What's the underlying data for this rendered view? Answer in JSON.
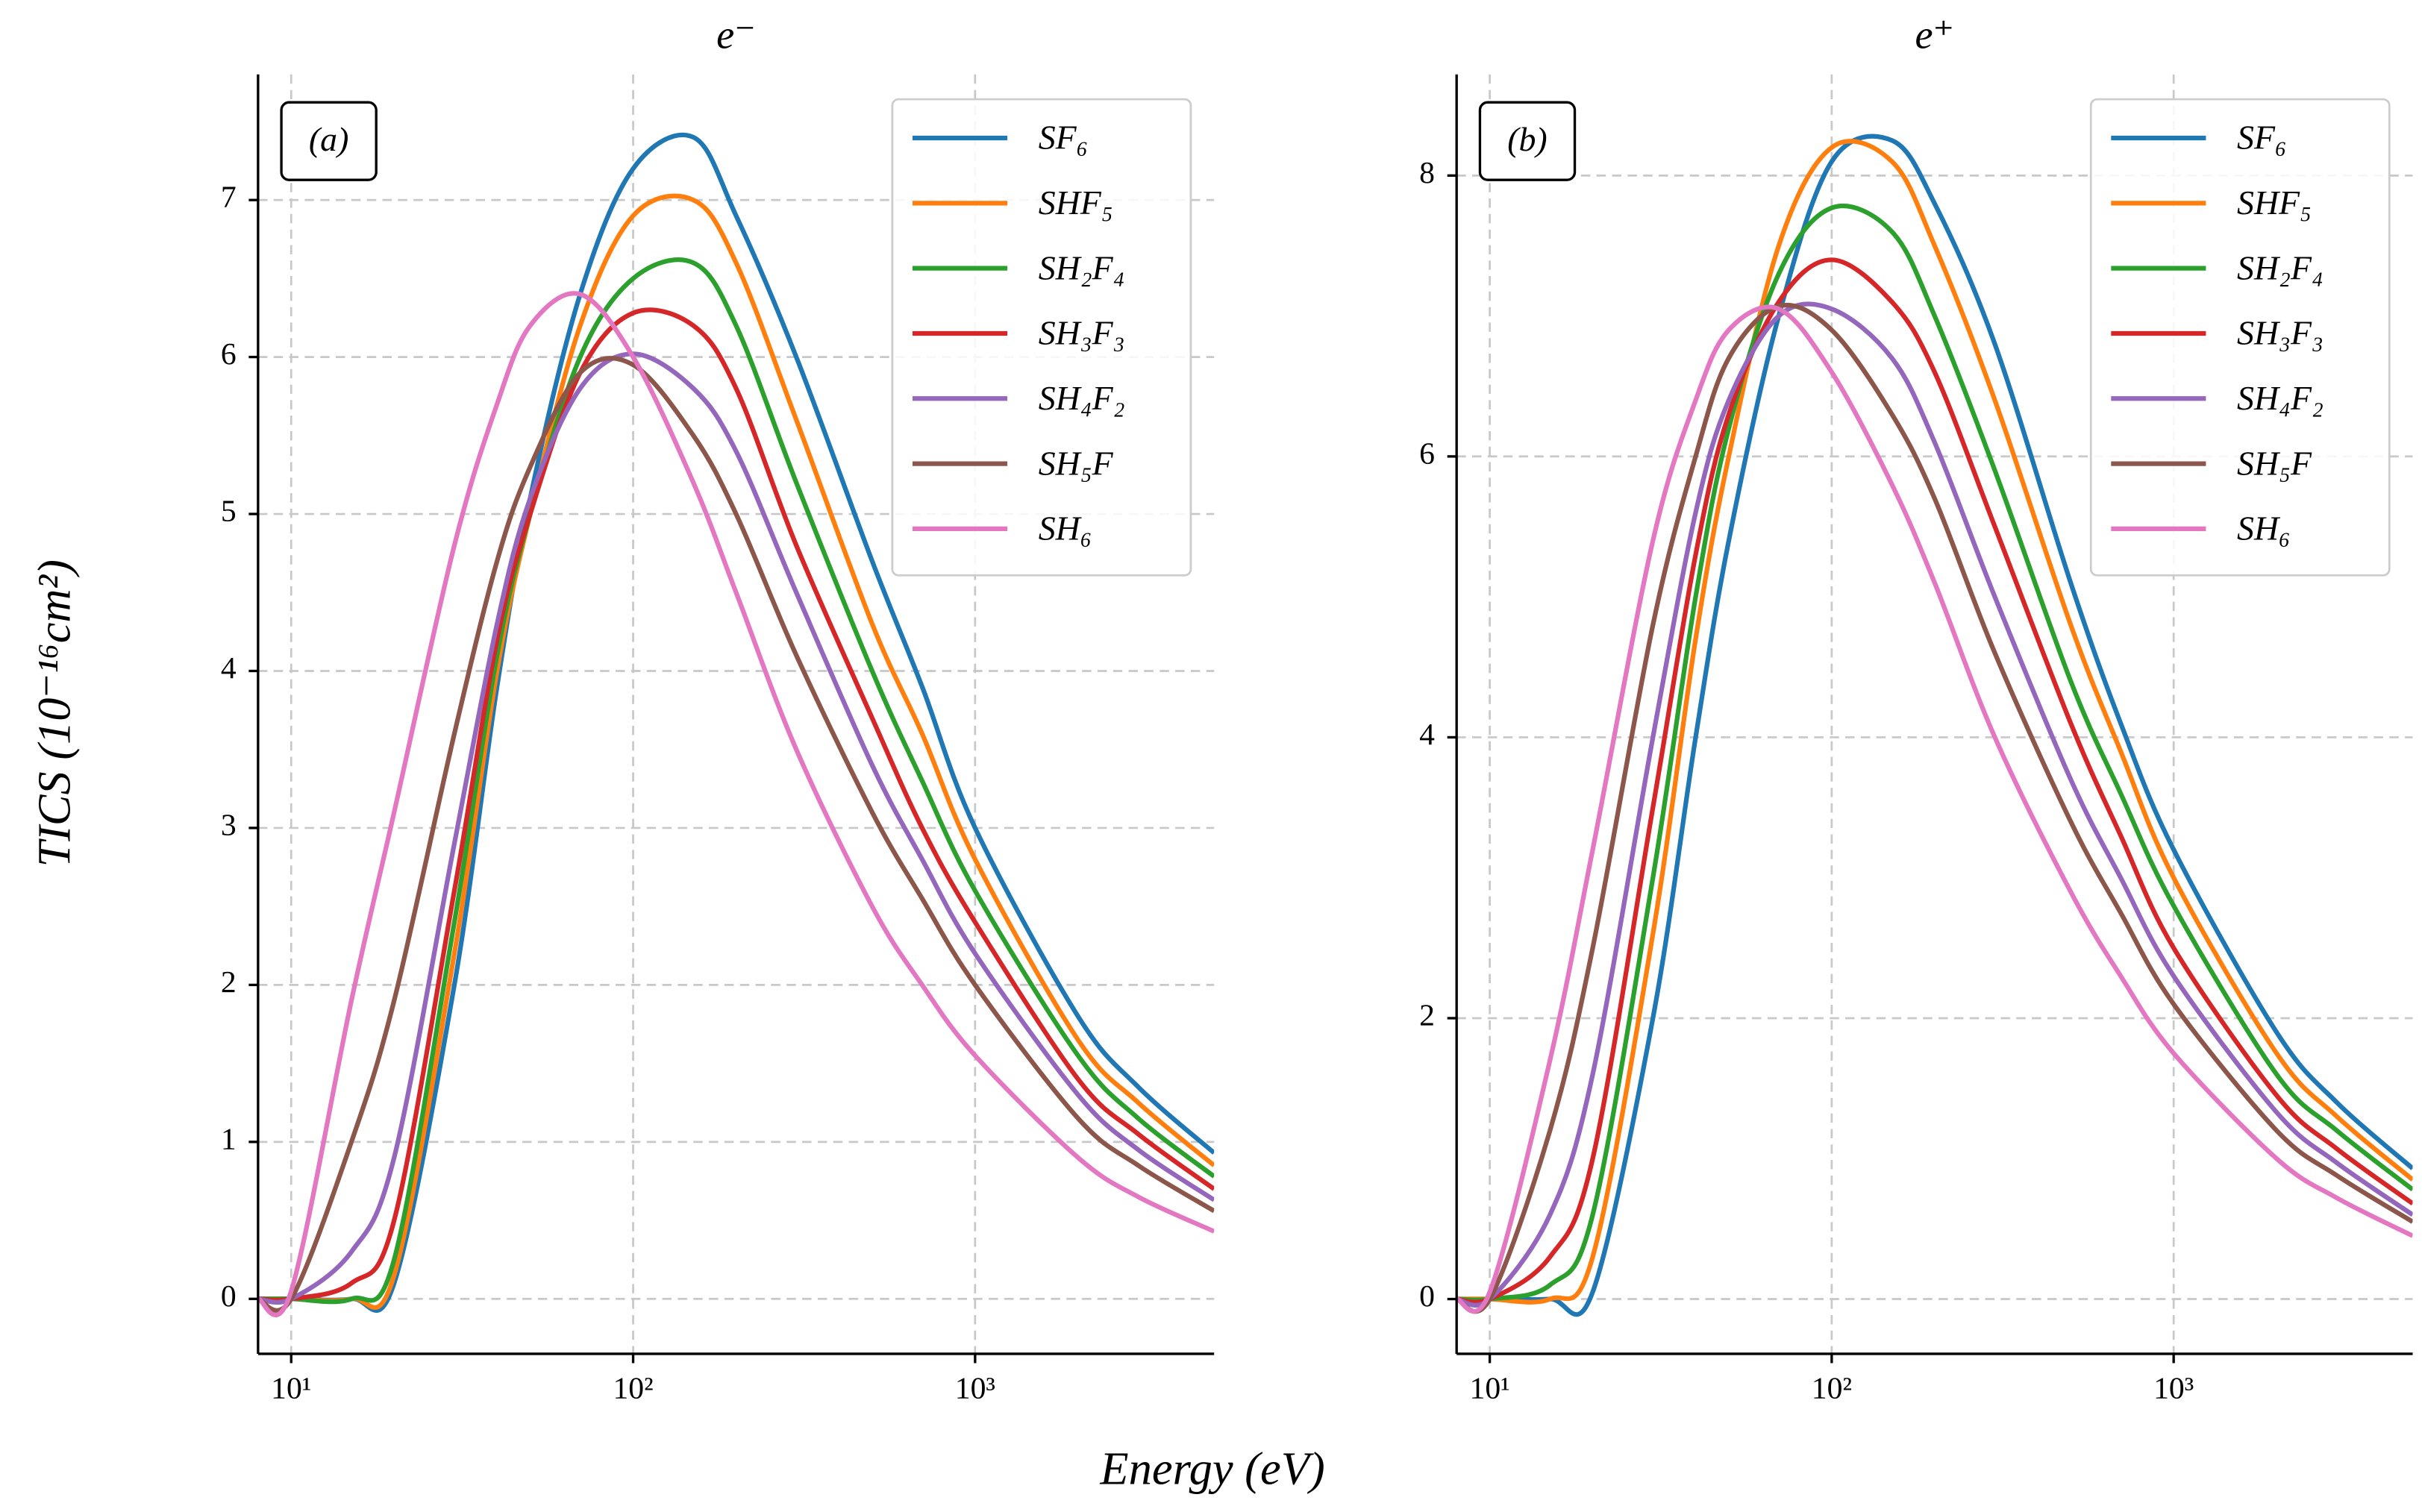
{
  "xlabel": "Energy (eV)",
  "ylabel": "TICS (10⁻¹⁶cm²)",
  "chart_data": [
    {
      "type": "line",
      "title": "e⁻",
      "panel_label": "(a)",
      "xscale": "log",
      "grid": true,
      "legend": "upper right",
      "xlim": [
        8,
        5000
      ],
      "ylim": [
        -0.35,
        7.8
      ],
      "xticks": [
        {
          "value": 10,
          "label": "10¹"
        },
        {
          "value": 100,
          "label": "10²"
        },
        {
          "value": 1000,
          "label": "10³"
        }
      ],
      "yticks": [
        0,
        1,
        2,
        3,
        4,
        5,
        6,
        7
      ],
      "x": [
        8,
        10,
        15,
        20,
        30,
        40,
        50,
        70,
        100,
        150,
        200,
        300,
        500,
        700,
        1000,
        2000,
        3000,
        5000
      ],
      "series": [
        {
          "name": "SF₆",
          "color": "#1f77b4",
          "values": [
            0,
            0,
            0,
            0.1,
            2.0,
            3.9,
            5.1,
            6.4,
            7.2,
            7.4,
            6.9,
            6.0,
            4.7,
            3.9,
            3.0,
            1.8,
            1.35,
            0.93
          ]
        },
        {
          "name": "SHF₅",
          "color": "#ff7f0e",
          "values": [
            0,
            0,
            0,
            0.15,
            2.2,
            4.0,
            5.0,
            6.2,
            6.9,
            7.0,
            6.6,
            5.6,
            4.3,
            3.6,
            2.8,
            1.65,
            1.25,
            0.85
          ]
        },
        {
          "name": "SH₂F₄",
          "color": "#2ca02c",
          "values": [
            0,
            0,
            0,
            0.25,
            2.4,
            4.1,
            5.0,
            6.0,
            6.5,
            6.6,
            6.2,
            5.2,
            4.0,
            3.3,
            2.6,
            1.55,
            1.15,
            0.78
          ]
        },
        {
          "name": "SH₃F₃",
          "color": "#d62728",
          "values": [
            0,
            0,
            0.1,
            0.5,
            2.6,
            4.2,
            5.0,
            5.9,
            6.28,
            6.2,
            5.8,
            4.8,
            3.7,
            3.0,
            2.4,
            1.4,
            1.05,
            0.7
          ]
        },
        {
          "name": "SH₄F₂",
          "color": "#9467bd",
          "values": [
            0,
            0,
            0.3,
            0.9,
            2.9,
            4.3,
            5.1,
            5.8,
            6.02,
            5.8,
            5.4,
            4.5,
            3.4,
            2.8,
            2.2,
            1.3,
            0.95,
            0.63
          ]
        },
        {
          "name": "SH₅F",
          "color": "#8c564b",
          "values": [
            0,
            0,
            1.0,
            1.9,
            3.6,
            4.7,
            5.3,
            5.9,
            5.95,
            5.5,
            5.0,
            4.1,
            3.1,
            2.55,
            2.0,
            1.15,
            0.85,
            0.56
          ]
        },
        {
          "name": "SH₆",
          "color": "#e377c2",
          "values": [
            0,
            0.05,
            1.9,
            3.1,
            4.8,
            5.7,
            6.2,
            6.4,
            6.0,
            5.2,
            4.5,
            3.5,
            2.5,
            2.0,
            1.55,
            0.9,
            0.65,
            0.43
          ]
        }
      ]
    },
    {
      "type": "line",
      "title": "e⁺",
      "panel_label": "(b)",
      "xscale": "log",
      "grid": true,
      "legend": "upper right",
      "xlim": [
        8,
        5000
      ],
      "ylim": [
        -0.39,
        8.72
      ],
      "xticks": [
        {
          "value": 10,
          "label": "10¹"
        },
        {
          "value": 100,
          "label": "10²"
        },
        {
          "value": 1000,
          "label": "10³"
        }
      ],
      "yticks": [
        0,
        2,
        4,
        6,
        8
      ],
      "x": [
        8,
        10,
        15,
        20,
        30,
        40,
        50,
        70,
        100,
        150,
        200,
        300,
        500,
        700,
        1000,
        2000,
        3000,
        5000
      ],
      "series": [
        {
          "name": "SF₆",
          "color": "#1f77b4",
          "values": [
            0,
            0,
            0,
            0.05,
            2.0,
            4.0,
            5.4,
            7.0,
            8.1,
            8.25,
            7.8,
            6.8,
            5.1,
            4.1,
            3.2,
            1.9,
            1.4,
            0.93
          ]
        },
        {
          "name": "SHF₅",
          "color": "#ff7f0e",
          "values": [
            0,
            0,
            0,
            0.3,
            2.6,
            4.7,
            6.0,
            7.5,
            8.2,
            8.1,
            7.5,
            6.4,
            4.8,
            3.9,
            3.0,
            1.75,
            1.3,
            0.85
          ]
        },
        {
          "name": "SH₂F₄",
          "color": "#2ca02c",
          "values": [
            0,
            0,
            0.1,
            0.6,
            3.0,
            5.0,
            6.2,
            7.3,
            7.77,
            7.6,
            7.0,
            5.9,
            4.4,
            3.6,
            2.8,
            1.6,
            1.2,
            0.78
          ]
        },
        {
          "name": "SH₃F₃",
          "color": "#d62728",
          "values": [
            0,
            0,
            0.3,
            1.0,
            3.5,
            5.3,
            6.3,
            7.1,
            7.4,
            7.1,
            6.6,
            5.5,
            4.1,
            3.3,
            2.5,
            1.45,
            1.07,
            0.68
          ]
        },
        {
          "name": "SH₄F₂",
          "color": "#9467bd",
          "values": [
            0,
            0,
            0.6,
            1.6,
            4.0,
            5.6,
            6.4,
            7.0,
            7.05,
            6.7,
            6.1,
            5.0,
            3.7,
            3.0,
            2.3,
            1.33,
            0.97,
            0.6
          ]
        },
        {
          "name": "SH₅F",
          "color": "#8c564b",
          "values": [
            0,
            0,
            1.2,
            2.5,
            4.8,
            6.0,
            6.7,
            7.07,
            6.9,
            6.3,
            5.7,
            4.6,
            3.4,
            2.75,
            2.1,
            1.2,
            0.88,
            0.55
          ]
        },
        {
          "name": "SH₆",
          "color": "#e377c2",
          "values": [
            0,
            0.05,
            1.7,
            3.2,
            5.4,
            6.4,
            6.9,
            7.05,
            6.6,
            5.8,
            5.1,
            4.0,
            2.9,
            2.3,
            1.75,
            1.0,
            0.72,
            0.45
          ]
        }
      ]
    }
  ]
}
